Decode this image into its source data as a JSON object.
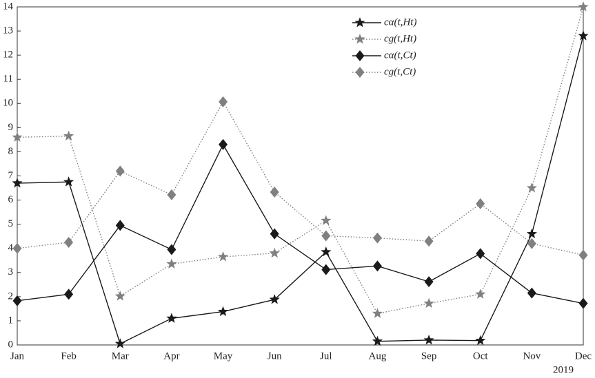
{
  "chart_data": {
    "type": "line",
    "annotation": "2019",
    "categories": [
      "Jan",
      "Feb",
      "Mar",
      "Apr",
      "May",
      "Jun",
      "Jul",
      "Aug",
      "Sep",
      "Oct",
      "Nov",
      "Dec"
    ],
    "ylim": [
      0,
      14
    ],
    "yticks": [
      0,
      1,
      2,
      3,
      4,
      5,
      6,
      7,
      8,
      9,
      10,
      11,
      12,
      13,
      14
    ],
    "series": [
      {
        "name": "cα(t,Ht)",
        "color": "#1a1a1a",
        "marker": "star",
        "dash": "solid",
        "values": [
          6.7,
          6.75,
          0.05,
          1.1,
          1.38,
          1.88,
          3.85,
          0.15,
          0.2,
          0.18,
          4.6,
          12.8
        ]
      },
      {
        "name": "cg(t,Ht)",
        "color": "#808080",
        "marker": "star",
        "dash": "dotted",
        "values": [
          8.6,
          8.65,
          2.02,
          3.35,
          3.65,
          3.8,
          5.15,
          1.3,
          1.72,
          2.1,
          6.5,
          14.0
        ]
      },
      {
        "name": "cα(t,Ct)",
        "color": "#1a1a1a",
        "marker": "diamond",
        "dash": "solid",
        "values": [
          1.83,
          2.1,
          4.95,
          3.95,
          8.3,
          4.6,
          3.12,
          3.27,
          2.62,
          3.78,
          2.15,
          1.72
        ]
      },
      {
        "name": "cg(t,Ct)",
        "color": "#808080",
        "marker": "diamond",
        "dash": "dotted",
        "values": [
          4.0,
          4.25,
          7.2,
          6.22,
          10.07,
          6.33,
          4.52,
          4.43,
          4.3,
          5.85,
          4.2,
          3.72
        ]
      }
    ]
  }
}
